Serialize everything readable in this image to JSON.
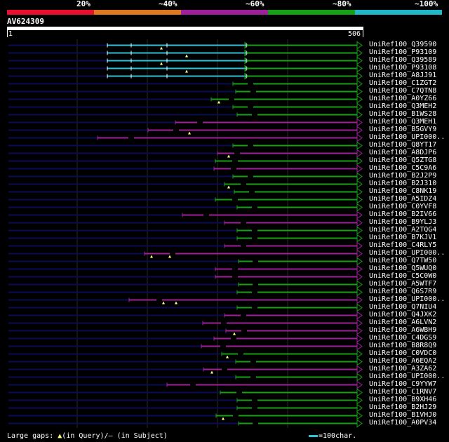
{
  "legend": {
    "segments": [
      {
        "label": "20%",
        "color": "#e8102e"
      },
      {
        "label": "~40%",
        "color": "#e07820"
      },
      {
        "label": "~60%",
        "color": "#a0209c"
      },
      {
        "label": "~80%",
        "color": "#16a016"
      },
      {
        "label": "~100%",
        "color": "#20b8c8"
      }
    ]
  },
  "query": {
    "id": "AV624309",
    "start": "1",
    "end": "506"
  },
  "colors": {
    "cyan": "#2ec4d8",
    "green": "#16a016",
    "purple": "#a0209c",
    "navy": "#0b0b55",
    "marker": "#ffff80"
  },
  "hits": [
    {
      "name": "UniRef100_Q39590",
      "color": "cyan",
      "start": 153,
      "split": 351,
      "markers": [
        230
      ]
    },
    {
      "name": "UniRef100_P93109",
      "color": "cyan",
      "start": 153,
      "split": 351,
      "markers": [
        266
      ]
    },
    {
      "name": "UniRef100_Q39589",
      "color": "cyan",
      "start": 153,
      "split": 351,
      "markers": [
        230
      ]
    },
    {
      "name": "UniRef100_P93108",
      "color": "cyan",
      "start": 153,
      "split": 351,
      "markers": [
        266
      ]
    },
    {
      "name": "UniRef100_A8JJ91",
      "color": "cyan",
      "start": 153,
      "split": 351,
      "markers": []
    },
    {
      "name": "UniRef100_C1ZGT2",
      "color": "green",
      "start": 332,
      "markers": []
    },
    {
      "name": "UniRef100_C7QTN8",
      "color": "green",
      "start": 336,
      "markers": []
    },
    {
      "name": "UniRef100_A0YZ66",
      "color": "green",
      "start": 301,
      "markers": [
        312
      ]
    },
    {
      "name": "UniRef100_Q3MEH2",
      "color": "green",
      "start": 332,
      "markers": []
    },
    {
      "name": "UniRef100_B1WS28",
      "color": "green",
      "start": 338,
      "markers": []
    },
    {
      "name": "UniRef100_Q3MEH1",
      "color": "purple",
      "start": 250,
      "markers": []
    },
    {
      "name": "UniRef100_B5GVY9",
      "color": "purple",
      "start": 211,
      "markers": [
        270
      ]
    },
    {
      "name": "UniRef100_UPI000..",
      "color": "purple",
      "start": 139,
      "markers": []
    },
    {
      "name": "UniRef100_Q8YT17",
      "color": "green",
      "start": 332,
      "markers": []
    },
    {
      "name": "UniRef100_A8DJP6",
      "color": "purple",
      "start": 310,
      "markers": [
        326
      ]
    },
    {
      "name": "UniRef100_Q5ZTG8",
      "color": "green",
      "start": 307,
      "markers": []
    },
    {
      "name": "UniRef100_C5C9A6",
      "color": "purple",
      "start": 305,
      "markers": []
    },
    {
      "name": "UniRef100_B2J2P9",
      "color": "green",
      "start": 332,
      "markers": []
    },
    {
      "name": "UniRef100_B2J310",
      "color": "green",
      "start": 320,
      "markers": [
        326
      ]
    },
    {
      "name": "UniRef100_C8NK19",
      "color": "green",
      "start": 334,
      "markers": []
    },
    {
      "name": "UniRef100_A5IDZ4",
      "color": "green",
      "start": 307,
      "markers": []
    },
    {
      "name": "UniRef100_C0YVF8",
      "color": "green",
      "start": 338,
      "markers": []
    },
    {
      "name": "UniRef100_B2IV66",
      "color": "purple",
      "start": 260,
      "markers": []
    },
    {
      "name": "UniRef100_B9YLJ3",
      "color": "purple",
      "start": 320,
      "markers": []
    },
    {
      "name": "UniRef100_A2TQG4",
      "color": "green",
      "start": 338,
      "markers": []
    },
    {
      "name": "UniRef100_B7KJV1",
      "color": "green",
      "start": 338,
      "markers": []
    },
    {
      "name": "UniRef100_C4RLY5",
      "color": "purple",
      "start": 320,
      "markers": []
    },
    {
      "name": "UniRef100_UPI000..",
      "color": "purple",
      "start": 206,
      "markers": [
        216,
        242
      ]
    },
    {
      "name": "UniRef100_Q7TW50",
      "color": "green",
      "start": 340,
      "markers": []
    },
    {
      "name": "UniRef100_Q5WUQ0",
      "color": "purple",
      "start": 307,
      "markers": []
    },
    {
      "name": "UniRef100_C5C0W0",
      "color": "purple",
      "start": 307,
      "markers": []
    },
    {
      "name": "UniRef100_A5WTF7",
      "color": "green",
      "start": 340,
      "markers": []
    },
    {
      "name": "UniRef100_Q6S7R9",
      "color": "green",
      "start": 338,
      "markers": []
    },
    {
      "name": "UniRef100_UPI000..",
      "color": "purple",
      "start": 184,
      "markers": [
        233,
        251
      ]
    },
    {
      "name": "UniRef100_Q7NIU4",
      "color": "green",
      "start": 338,
      "markers": []
    },
    {
      "name": "UniRef100_Q4JXK2",
      "color": "purple",
      "start": 320,
      "markers": []
    },
    {
      "name": "UniRef100_A6LVN2",
      "color": "purple",
      "start": 289,
      "markers": []
    },
    {
      "name": "UniRef100_A6WBH9",
      "color": "purple",
      "start": 322,
      "markers": [
        334
      ]
    },
    {
      "name": "UniRef100_C4DGS9",
      "color": "purple",
      "start": 305,
      "markers": []
    },
    {
      "name": "UniRef100_B8R8Q9",
      "color": "purple",
      "start": 287,
      "markers": []
    },
    {
      "name": "UniRef100_C0VDC0",
      "color": "green",
      "start": 316,
      "markers": [
        324
      ]
    },
    {
      "name": "UniRef100_A6EQA2",
      "color": "green",
      "start": 336,
      "markers": []
    },
    {
      "name": "UniRef100_A3ZA62",
      "color": "purple",
      "start": 290,
      "markers": [
        302
      ]
    },
    {
      "name": "UniRef100_UPI000..",
      "color": "green",
      "start": 336,
      "markers": []
    },
    {
      "name": "UniRef100_C9YYW7",
      "color": "purple",
      "start": 238,
      "markers": []
    },
    {
      "name": "UniRef100_C1RNV7",
      "color": "green",
      "start": 314,
      "markers": []
    },
    {
      "name": "UniRef100_B9XH46",
      "color": "green",
      "start": 338,
      "markers": []
    },
    {
      "name": "UniRef100_B2HJ29",
      "color": "green",
      "start": 338,
      "markers": []
    },
    {
      "name": "UniRef100_B1VHJ0",
      "color": "green",
      "start": 308,
      "markers": [
        318
      ]
    },
    {
      "name": "UniRef100_A0PV34",
      "color": "green",
      "start": 340,
      "markers": []
    }
  ],
  "footer": {
    "prefix": "Large gaps:",
    "query_marker": "▲",
    "query_text": "(in Query)/",
    "subject_marker": "—",
    "subject_text": " (in Subject)",
    "scale_text": "=100char."
  }
}
